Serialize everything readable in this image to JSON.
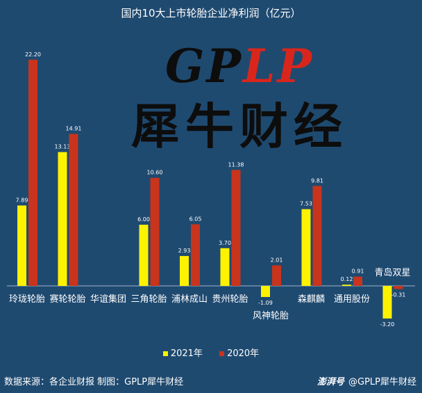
{
  "chart_data": {
    "type": "bar",
    "title": "国内10大上市轮胎企业净利润（亿元）",
    "categories": [
      "玲珑轮胎",
      "赛轮轮胎",
      "华谊集团",
      "三角轮胎",
      "浦林成山",
      "贵州轮胎",
      "风神轮胎",
      "森麒麟",
      "通用股份",
      "青岛双星"
    ],
    "series": [
      {
        "name": "2021年",
        "color": "#fff200",
        "values": [
          7.89,
          13.13,
          null,
          6.0,
          2.93,
          3.7,
          -1.09,
          7.53,
          0.12,
          -3.2
        ],
        "labels": [
          "7.89",
          "13.13",
          "",
          "6.00",
          "2.93",
          "3.70",
          "-1.09",
          "7.53",
          "0.12",
          "-3.20"
        ]
      },
      {
        "name": "2020年",
        "color": "#c8341c",
        "values": [
          22.2,
          14.91,
          null,
          10.6,
          6.05,
          11.38,
          2.01,
          9.81,
          0.91,
          -0.31
        ],
        "labels": [
          "22.20",
          "14.91",
          "",
          "10.60",
          "6.05",
          "11.38",
          "2.01",
          "9.81",
          "0.91",
          "-0.31"
        ]
      }
    ],
    "legend_position": "bottom",
    "grid": false
  },
  "watermark": {
    "latin_main": "GP",
    "latin_accent": "LP",
    "chinese": "犀牛财经"
  },
  "footer": {
    "source": "数据来源：各企业财报  制图：GPLP犀牛财经",
    "brand": "澎湃号",
    "credit": "@GPLP犀牛财经"
  },
  "colors": {
    "background": "#1f4a70",
    "series_2021": "#fff200",
    "series_2020": "#c8341c"
  }
}
